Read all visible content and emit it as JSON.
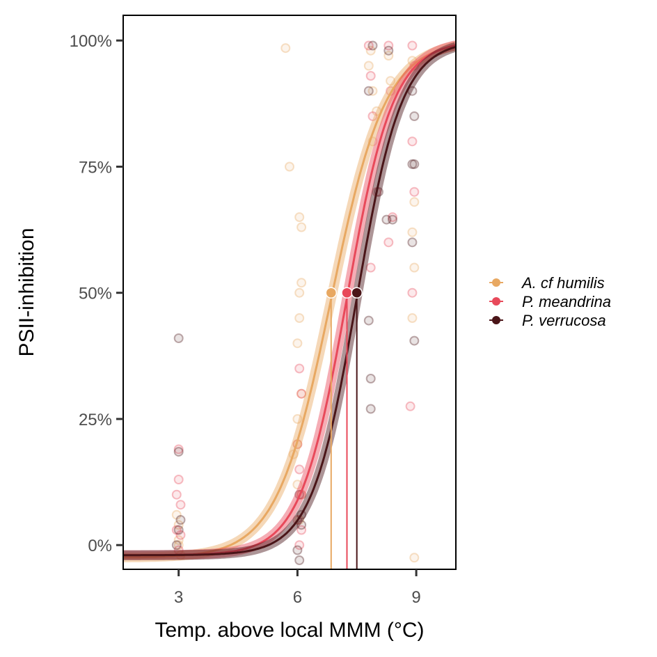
{
  "chart_data": {
    "type": "scatter",
    "xlabel": "Temp. above local MMM (°C)",
    "ylabel": "PSII-inhibition",
    "xlim": [
      1.6,
      10.0
    ],
    "ylim": [
      -0.048,
      1.05
    ],
    "x_ticks": [
      3,
      6,
      9
    ],
    "x_tick_labels": [
      "3",
      "6",
      "9"
    ],
    "y_ticks": [
      0,
      0.25,
      0.5,
      0.75,
      1.0
    ],
    "y_tick_labels": [
      "0%",
      "25%",
      "50%",
      "75%",
      "100%"
    ],
    "grid": false,
    "legend_position": "right",
    "series": [
      {
        "name": "A. cf humilis",
        "color": "#E8A862",
        "ed50": 6.85,
        "slope": 1.45,
        "floor": -0.025,
        "ceiling": 1.0,
        "points": [
          [
            3.0,
            0.01
          ],
          [
            3.0,
            0.04
          ],
          [
            3.05,
            -0.02
          ],
          [
            2.95,
            0.06
          ],
          [
            3.0,
            0.0
          ],
          [
            5.7,
            0.985
          ],
          [
            5.8,
            0.75
          ],
          [
            5.9,
            0.18
          ],
          [
            6.0,
            0.2
          ],
          [
            6.05,
            0.5
          ],
          [
            6.1,
            0.52
          ],
          [
            6.05,
            0.65
          ],
          [
            6.1,
            0.63
          ],
          [
            6.0,
            0.4
          ],
          [
            6.1,
            0.3
          ],
          [
            6.0,
            0.12
          ],
          [
            6.1,
            0.1
          ],
          [
            6.05,
            0.05
          ],
          [
            6.0,
            0.25
          ],
          [
            6.05,
            0.45
          ],
          [
            7.8,
            0.95
          ],
          [
            7.9,
            0.9
          ],
          [
            7.85,
            0.98
          ],
          [
            8.3,
            0.97
          ],
          [
            8.35,
            0.92
          ],
          [
            8.9,
            0.96
          ],
          [
            8.95,
            0.68
          ],
          [
            8.9,
            0.62
          ],
          [
            8.95,
            0.55
          ],
          [
            8.9,
            0.45
          ],
          [
            8.95,
            -0.025
          ],
          [
            7.9,
            0.8
          ],
          [
            8.0,
            0.86
          ]
        ]
      },
      {
        "name": "P. meandrina",
        "color": "#E8495A",
        "ed50": 7.25,
        "slope": 1.7,
        "floor": -0.02,
        "ceiling": 1.0,
        "points": [
          [
            3.0,
            0.19
          ],
          [
            3.0,
            0.13
          ],
          [
            3.05,
            0.08
          ],
          [
            2.95,
            0.03
          ],
          [
            3.0,
            -0.01
          ],
          [
            3.05,
            0.02
          ],
          [
            2.95,
            0.1
          ],
          [
            6.05,
            0.35
          ],
          [
            6.1,
            0.3
          ],
          [
            6.0,
            0.2
          ],
          [
            6.05,
            0.15
          ],
          [
            6.1,
            0.1
          ],
          [
            6.0,
            0.05
          ],
          [
            6.05,
            0.0
          ],
          [
            6.1,
            0.03
          ],
          [
            7.8,
            0.99
          ],
          [
            7.85,
            0.93
          ],
          [
            7.9,
            0.85
          ],
          [
            8.0,
            0.7
          ],
          [
            8.3,
            0.99
          ],
          [
            8.35,
            0.9
          ],
          [
            8.4,
            0.65
          ],
          [
            8.3,
            0.6
          ],
          [
            8.9,
            0.99
          ],
          [
            8.95,
            0.95
          ],
          [
            8.9,
            0.8
          ],
          [
            8.95,
            0.7
          ],
          [
            8.9,
            0.5
          ],
          [
            8.85,
            0.275
          ],
          [
            7.85,
            0.55
          ]
        ]
      },
      {
        "name": "P. verrucosa",
        "color": "#4A1518",
        "ed50": 7.5,
        "slope": 1.75,
        "floor": -0.02,
        "ceiling": 1.0,
        "points": [
          [
            3.0,
            0.41
          ],
          [
            3.0,
            0.185
          ],
          [
            3.05,
            0.05
          ],
          [
            2.95,
            0.0
          ],
          [
            3.0,
            0.03
          ],
          [
            6.05,
            0.1
          ],
          [
            6.1,
            0.04
          ],
          [
            6.0,
            -0.01
          ],
          [
            6.05,
            -0.03
          ],
          [
            6.1,
            0.06
          ],
          [
            7.8,
            0.445
          ],
          [
            7.85,
            0.33
          ],
          [
            7.85,
            0.27
          ],
          [
            7.8,
            0.9
          ],
          [
            7.9,
            0.99
          ],
          [
            8.05,
            0.7
          ],
          [
            8.25,
            0.645
          ],
          [
            8.4,
            0.645
          ],
          [
            8.3,
            0.98
          ],
          [
            8.9,
            0.755
          ],
          [
            8.95,
            0.755
          ],
          [
            8.9,
            0.6
          ],
          [
            8.95,
            0.405
          ],
          [
            8.9,
            0.9
          ],
          [
            8.95,
            0.85
          ]
        ]
      }
    ]
  }
}
